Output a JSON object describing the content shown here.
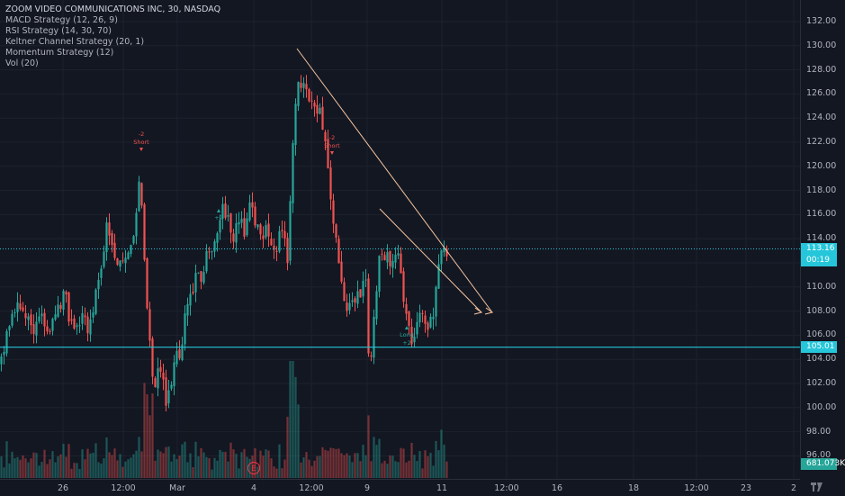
{
  "header": {
    "symbol_line": "ZOOM VIDEO COMMUNICATIONS INC, 30, NASDAQ",
    "indicators": [
      "MACD Strategy (12, 26, 9)",
      "RSI Strategy (14, 30, 70)",
      "Keltner Channel Strategy (20, 1)",
      "Momentum Strategy (12)",
      "Vol (20)"
    ]
  },
  "price_axis": {
    "labels": [
      "132.00",
      "130.00",
      "128.00",
      "126.00",
      "124.00",
      "122.00",
      "120.00",
      "118.00",
      "116.00",
      "114.00",
      "112.00",
      "110.00",
      "108.00",
      "106.00",
      "104.00",
      "102.00",
      "100.00",
      "98.00",
      "96.00"
    ],
    "current_price": "113.16",
    "countdown": "00:19",
    "level_price": "105.01",
    "volume_value": "681.073K"
  },
  "time_axis": {
    "labels": [
      "26",
      "12:00",
      "Mar",
      "4",
      "12:00",
      "9",
      "11",
      "12:00",
      "16",
      "18",
      "12:00",
      "23",
      "2"
    ]
  },
  "signals": {
    "short_text": "Short",
    "short_value": "-2",
    "long_text": "Long",
    "long_value": "+2",
    "earnings_mark": "E"
  },
  "colors": {
    "background": "#131722",
    "up": "#26a69a",
    "down": "#ef5350",
    "level_line": "#26c6da",
    "trendline": "#f7c59f",
    "grid": "#1e222d"
  },
  "chart_data": {
    "type": "candlestick",
    "title": "ZOOM VIDEO COMMUNICATIONS INC, 30, NASDAQ",
    "ylim": [
      95,
      133
    ],
    "horizontal_level": 105.01,
    "last_price": 113.16,
    "close_path": [
      [
        0,
        103.5
      ],
      [
        6,
        105.5
      ],
      [
        12,
        107
      ],
      [
        18,
        108
      ],
      [
        24,
        109
      ],
      [
        30,
        107.5
      ],
      [
        36,
        106
      ],
      [
        42,
        108.5
      ],
      [
        48,
        107
      ],
      [
        54,
        105.5
      ],
      [
        60,
        107.5
      ],
      [
        66,
        108
      ],
      [
        72,
        109.5
      ],
      [
        78,
        107
      ],
      [
        84,
        106.5
      ],
      [
        90,
        107.5
      ],
      [
        96,
        106.5
      ],
      [
        102,
        107
      ],
      [
        108,
        110
      ],
      [
        114,
        113
      ],
      [
        120,
        115.5
      ],
      [
        126,
        113
      ],
      [
        132,
        112
      ],
      [
        138,
        113
      ],
      [
        144,
        112.5
      ],
      [
        150,
        114
      ],
      [
        156,
        120
      ],
      [
        160,
        112
      ],
      [
        164,
        108
      ],
      [
        168,
        104
      ],
      [
        172,
        101.5
      ],
      [
        176,
        104
      ],
      [
        180,
        103
      ],
      [
        184,
        100
      ],
      [
        188,
        101
      ],
      [
        192,
        103
      ],
      [
        196,
        105
      ],
      [
        200,
        104
      ],
      [
        204,
        107
      ],
      [
        208,
        108
      ],
      [
        212,
        109
      ],
      [
        218,
        111
      ],
      [
        224,
        110
      ],
      [
        230,
        112.5
      ],
      [
        236,
        113
      ],
      [
        242,
        114.5
      ],
      [
        248,
        117
      ],
      [
        254,
        115.5
      ],
      [
        260,
        114
      ],
      [
        266,
        115.5
      ],
      [
        272,
        114.5
      ],
      [
        278,
        116.5
      ],
      [
        284,
        115
      ],
      [
        290,
        114
      ],
      [
        296,
        115.5
      ],
      [
        302,
        114
      ],
      [
        308,
        113.5
      ],
      [
        314,
        114.5
      ],
      [
        320,
        112.5
      ],
      [
        324,
        120
      ],
      [
        328,
        125
      ],
      [
        332,
        126.5
      ],
      [
        338,
        127
      ],
      [
        344,
        126
      ],
      [
        350,
        125.5
      ],
      [
        356,
        124.5
      ],
      [
        362,
        122.5
      ],
      [
        366,
        119
      ],
      [
        370,
        116
      ],
      [
        374,
        113.5
      ],
      [
        378,
        111
      ],
      [
        382,
        108.5
      ],
      [
        386,
        107.5
      ],
      [
        390,
        109
      ],
      [
        396,
        108.5
      ],
      [
        402,
        110
      ],
      [
        406,
        112
      ],
      [
        410,
        103
      ],
      [
        414,
        106
      ],
      [
        418,
        110
      ],
      [
        422,
        113
      ],
      [
        428,
        112.5
      ],
      [
        434,
        112
      ],
      [
        440,
        113.5
      ],
      [
        446,
        110.5
      ],
      [
        450,
        109
      ],
      [
        454,
        107.5
      ],
      [
        458,
        105.5
      ],
      [
        464,
        107
      ],
      [
        470,
        107.5
      ],
      [
        476,
        106.5
      ],
      [
        482,
        108
      ],
      [
        488,
        111.5
      ],
      [
        492,
        113.16
      ],
      [
        498,
        112.8
      ]
    ]
  }
}
